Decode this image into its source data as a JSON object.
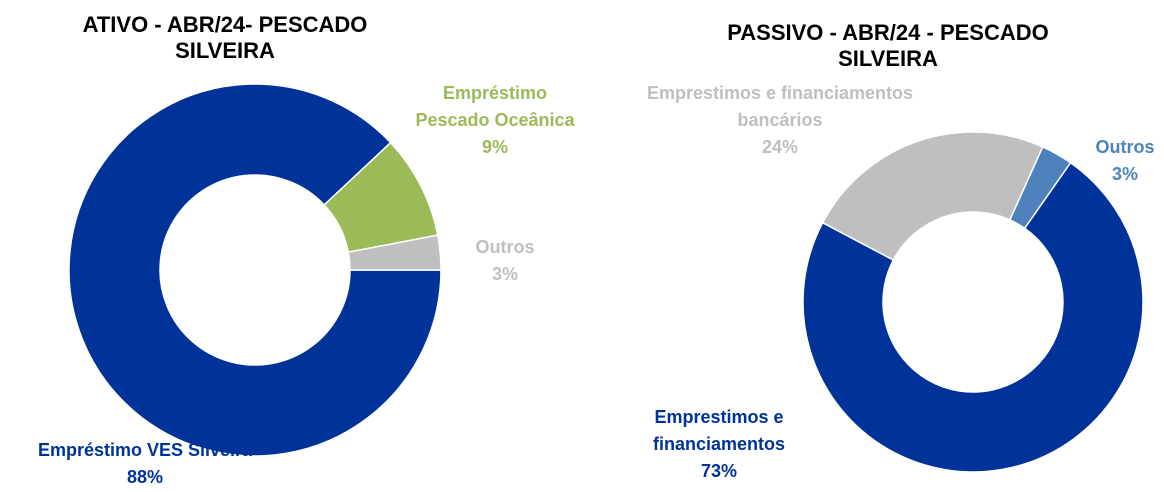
{
  "chart_data": [
    {
      "type": "pie",
      "donut": true,
      "title": "ATIVO - ABR/24- PESCADO SILVEIRA",
      "categories": [
        "Empréstimo VES Silveira",
        "Empréstimo Pescado Oceânica",
        "Outros"
      ],
      "values": [
        88,
        9,
        3
      ],
      "value_labels": [
        "88%",
        "9%",
        "3%"
      ],
      "colors": [
        "#003399",
        "#9bbb59",
        "#bfbfbf"
      ]
    },
    {
      "type": "pie",
      "donut": true,
      "title": "PASSIVO - ABR/24 - PESCADO SILVEIRA",
      "categories": [
        "Emprestimos e financiamentos",
        "Emprestimos e financiamentos bancários",
        "Outros"
      ],
      "values": [
        73,
        24,
        3
      ],
      "value_labels": [
        "73%",
        "24%",
        "3%"
      ],
      "colors": [
        "#003399",
        "#bfbfbf",
        "#4f81bd"
      ]
    }
  ]
}
